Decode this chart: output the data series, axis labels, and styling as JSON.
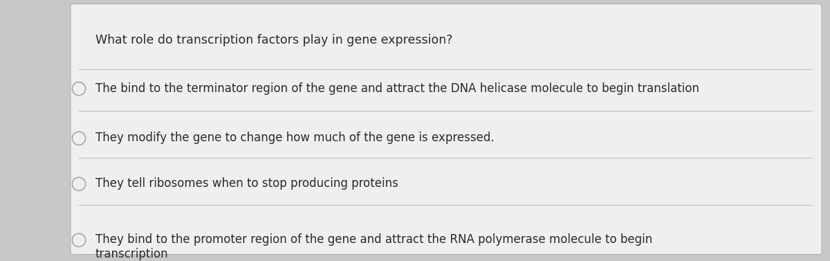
{
  "question": "What role do transcription factors play in gene expression?",
  "options": [
    "The bind to the terminator region of the gene and attract the DNA helicase molecule to begin translation",
    "They modify the gene to change how much of the gene is expressed.",
    "They tell ribosomes when to stop producing proteins",
    "They bind to the promoter region of the gene and attract the RNA polymerase molecule to begin\ntranscription"
  ],
  "bg_color": "#c8c8c8",
  "card_color": "#efefef",
  "text_color": "#2a2a2a",
  "line_color": "#c0c0c0",
  "circle_edge_color": "#999999",
  "question_fontsize": 12.5,
  "option_fontsize": 12,
  "figwidth": 12.0,
  "figheight": 3.77,
  "dpi": 100
}
